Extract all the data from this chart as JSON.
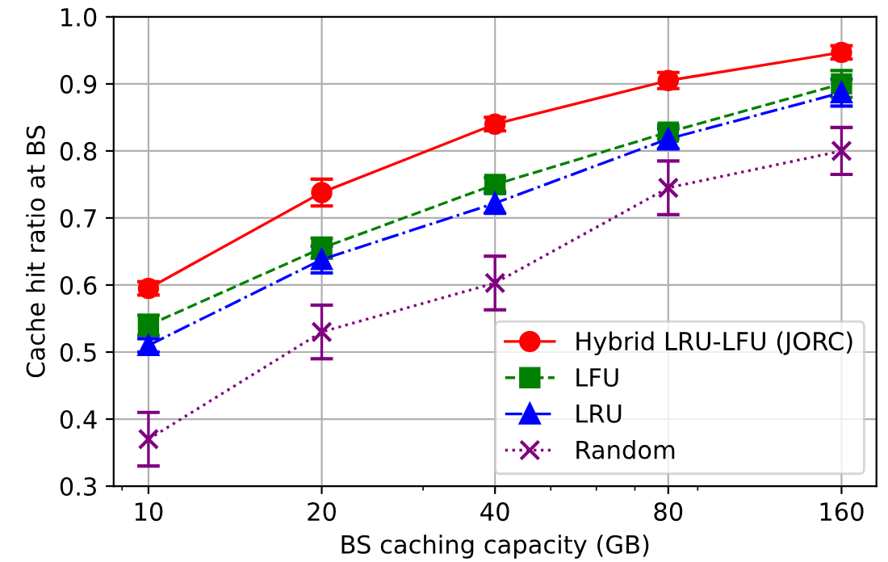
{
  "chart_data": {
    "type": "line",
    "xlabel": "BS caching capacity (GB)",
    "ylabel": "Cache hit ratio at BS",
    "x": [
      10,
      20,
      40,
      80,
      160
    ],
    "log": "x",
    "xlim": [
      8.7,
      184
    ],
    "xticks": [
      10,
      20,
      40,
      80,
      160
    ],
    "ylim": [
      0.3,
      1.0
    ],
    "yticks": [
      0.3,
      0.4,
      0.5,
      0.6,
      0.7,
      0.8,
      0.9,
      {
        "value": 1.0,
        "label": "1.0"
      }
    ],
    "grid": true,
    "legend": "bottom right",
    "series": [
      {
        "name": "Hybrid LRU-LFU (JORC)",
        "color": "#ff0000",
        "marker": "circle",
        "line_style": "solid",
        "values": [
          0.595,
          0.738,
          0.84,
          0.905,
          0.947
        ],
        "errors": [
          0.01,
          0.02,
          0.01,
          0.012,
          0.01
        ]
      },
      {
        "name": "LFU",
        "color": "#008000",
        "marker": "square",
        "line_style": "dashed",
        "values": [
          0.54,
          0.655,
          0.75,
          0.828,
          0.9
        ],
        "errors": [
          0.015,
          0.015,
          0.01,
          0.01,
          0.02
        ]
      },
      {
        "name": "LRU",
        "color": "#0000ff",
        "marker": "triangle",
        "line_style": "dashdot",
        "values": [
          0.51,
          0.638,
          0.722,
          0.818,
          0.887
        ],
        "errors": [
          0.01,
          0.02,
          0.015,
          0.015,
          0.02
        ]
      },
      {
        "name": "Random",
        "color": "#800080",
        "marker": "cross",
        "line_style": "dotted",
        "values": [
          0.37,
          0.53,
          0.603,
          0.745,
          0.8
        ],
        "errors": [
          0.04,
          0.04,
          0.04,
          0.04,
          0.035
        ]
      }
    ]
  }
}
